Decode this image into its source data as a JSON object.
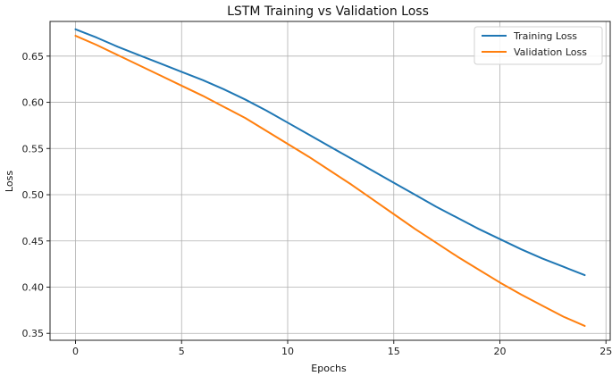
{
  "chart_data": {
    "type": "line",
    "title": "LSTM Training vs Validation Loss",
    "xlabel": "Epochs",
    "ylabel": "Loss",
    "xlim": [
      -1.2,
      25.2
    ],
    "ylim": [
      0.3425,
      0.6875
    ],
    "xticks": [
      0,
      5,
      10,
      15,
      20,
      25
    ],
    "yticks": [
      0.35,
      0.4,
      0.45,
      0.5,
      0.55,
      0.6,
      0.65
    ],
    "ytick_labels": [
      "0.35",
      "0.40",
      "0.45",
      "0.50",
      "0.55",
      "0.60",
      "0.65"
    ],
    "grid": true,
    "legend_position": "top-right",
    "x": [
      0,
      1,
      2,
      3,
      4,
      5,
      6,
      7,
      8,
      9,
      10,
      11,
      12,
      13,
      14,
      15,
      16,
      17,
      18,
      19,
      20,
      21,
      22,
      23,
      24
    ],
    "series": [
      {
        "name": "Training Loss",
        "color": "#1f77b4",
        "values": [
          0.679,
          0.67,
          0.66,
          0.651,
          0.642,
          0.633,
          0.624,
          0.614,
          0.603,
          0.591,
          0.578,
          0.565,
          0.552,
          0.539,
          0.526,
          0.513,
          0.5,
          0.487,
          0.475,
          0.463,
          0.452,
          0.441,
          0.431,
          0.422,
          0.413
        ]
      },
      {
        "name": "Validation Loss",
        "color": "#ff7f0e",
        "values": [
          0.672,
          0.662,
          0.651,
          0.64,
          0.629,
          0.618,
          0.607,
          0.595,
          0.583,
          0.569,
          0.555,
          0.541,
          0.526,
          0.511,
          0.495,
          0.479,
          0.463,
          0.448,
          0.433,
          0.419,
          0.405,
          0.392,
          0.38,
          0.368,
          0.358
        ]
      }
    ]
  }
}
